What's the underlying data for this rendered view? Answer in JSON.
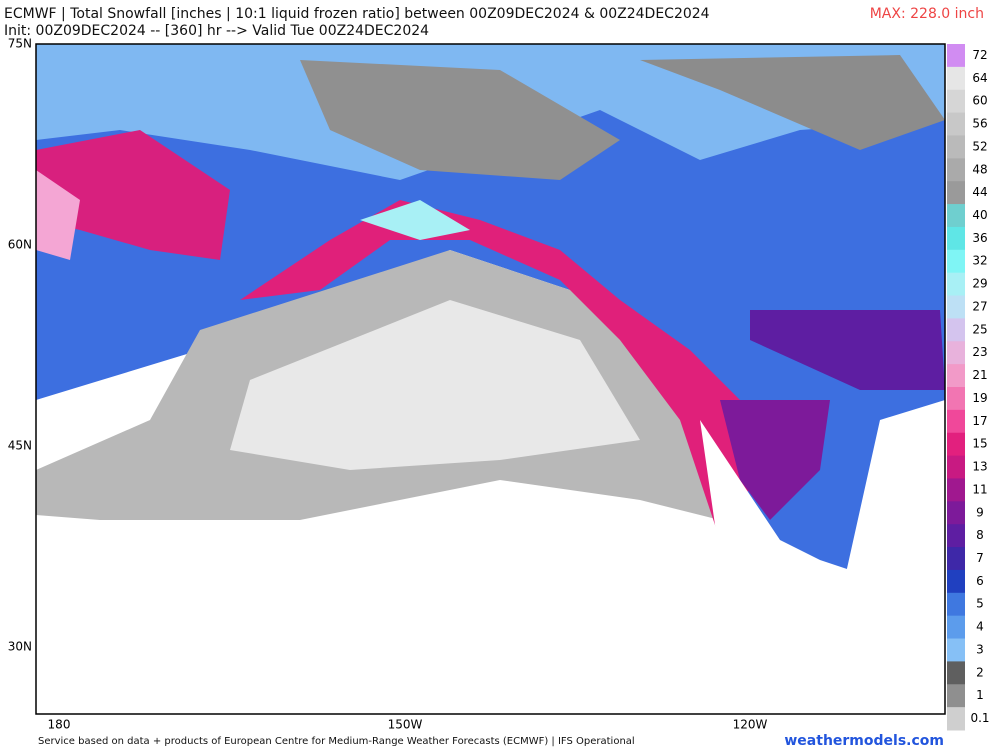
{
  "header": {
    "line1": "ECMWF | Total Snowfall [inches | 10:1 liquid frozen ratio] between 00Z09DEC2024 & 00Z24DEC2024",
    "max": "MAX: 228.0 inch",
    "line2": "Init: 00Z09DEC2024 -- [360] hr --> Valid Tue 00Z24DEC2024"
  },
  "map": {
    "lat_labels": [
      "75N",
      "60N",
      "45N",
      "30N"
    ],
    "lon_labels": [
      "180",
      "150W",
      "120W"
    ]
  },
  "colorbar": [
    {
      "label": "72",
      "color": "#d18cf2"
    },
    {
      "label": "64",
      "color": "#e6e6e6"
    },
    {
      "label": "60",
      "color": "#d6d6d6"
    },
    {
      "label": "56",
      "color": "#c8c8c8"
    },
    {
      "label": "52",
      "color": "#bababa"
    },
    {
      "label": "48",
      "color": "#aaaaaa"
    },
    {
      "label": "44",
      "color": "#9a9a9a"
    },
    {
      "label": "40",
      "color": "#6fcfcf"
    },
    {
      "label": "36",
      "color": "#5fe6e6"
    },
    {
      "label": "32",
      "color": "#7ff5f5"
    },
    {
      "label": "29",
      "color": "#a8f0f5"
    },
    {
      "label": "27",
      "color": "#bde0f5"
    },
    {
      "label": "25",
      "color": "#d4c4ee"
    },
    {
      "label": "23",
      "color": "#e8b2dc"
    },
    {
      "label": "21",
      "color": "#f29ac8"
    },
    {
      "label": "19",
      "color": "#f275b2"
    },
    {
      "label": "17",
      "color": "#f0489a"
    },
    {
      "label": "15",
      "color": "#e2207e"
    },
    {
      "label": "13",
      "color": "#c81a82"
    },
    {
      "label": "11",
      "color": "#a0188f"
    },
    {
      "label": "9",
      "color": "#7d1a9a"
    },
    {
      "label": "8",
      "color": "#5e1ea2"
    },
    {
      "label": "7",
      "color": "#3e28a8"
    },
    {
      "label": "6",
      "color": "#2040c0"
    },
    {
      "label": "5",
      "color": "#3f78e0"
    },
    {
      "label": "4",
      "color": "#5c9cec"
    },
    {
      "label": "3",
      "color": "#86c0f6"
    },
    {
      "label": "2",
      "color": "#5f5f5f"
    },
    {
      "label": "1",
      "color": "#8f8f8f"
    },
    {
      "label": "0.1",
      "color": "#cfcfcf"
    }
  ],
  "footer": {
    "credit": "Service based on data + products of European Centre for Medium-Range Weather Forecasts (ECMWF) | IFS Operational",
    "site": "weathermodels.com"
  }
}
